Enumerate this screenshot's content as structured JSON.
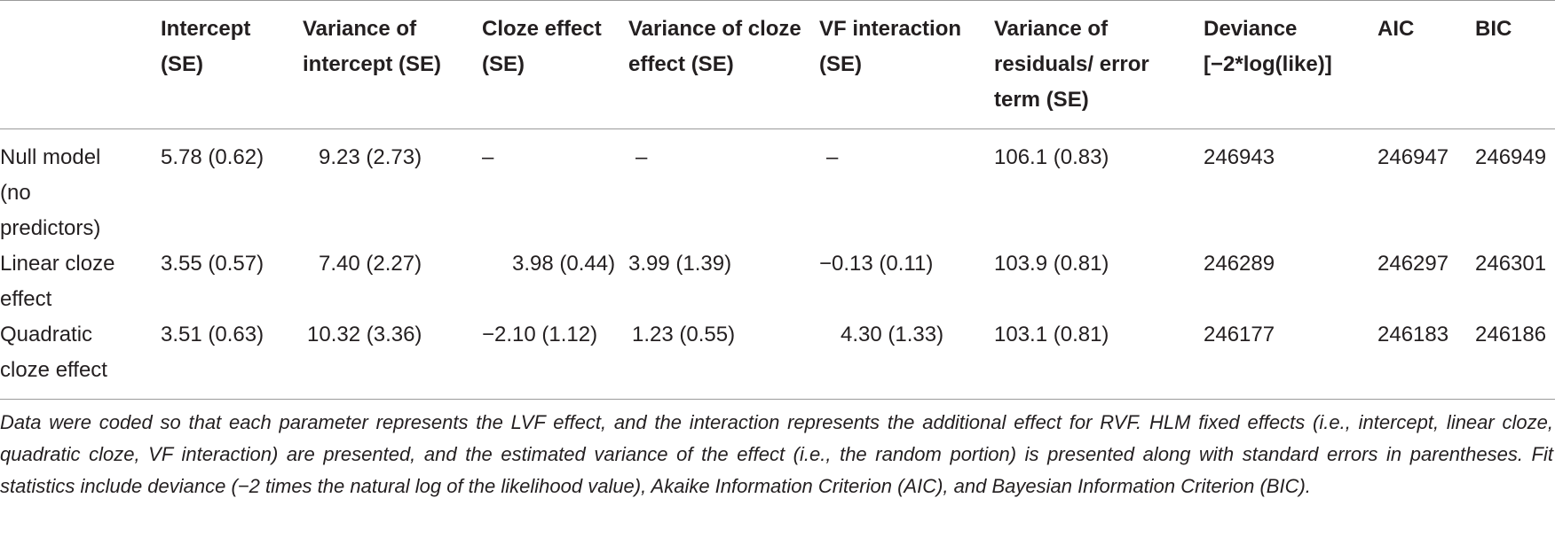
{
  "table": {
    "headers": [
      "",
      "Intercept (SE)",
      "Variance of intercept (SE)",
      "Cloze effect (SE)",
      "Variance of cloze effect (SE)",
      "VF interaction (SE)",
      "Variance of residuals/ error term (SE)",
      "Deviance [−2*log(like)]",
      "AIC",
      "BIC"
    ],
    "rows": [
      {
        "label": "Null model (no predictors)",
        "cells": [
          "5.78 (0.62)",
          "9.23 (2.73)",
          "–",
          "–",
          "–",
          "106.1 (0.83)",
          "246943",
          "246947",
          "246949"
        ]
      },
      {
        "label": "Linear cloze effect",
        "cells": [
          "3.55 (0.57)",
          "7.40 (2.27)",
          "3.98 (0.44)",
          "3.99 (1.39)",
          "−0.13 (0.11)",
          "103.9 (0.81)",
          "246289",
          "246297",
          "246301"
        ]
      },
      {
        "label": "Quadratic cloze effect",
        "cells": [
          "3.51 (0.63)",
          "10.32 (3.36)",
          "−2.10 (1.12)",
          "1.23 (0.55)",
          "4.30 (1.33)",
          "103.1 (0.81)",
          "246177",
          "246183",
          "246186"
        ]
      }
    ]
  },
  "note": "Data were coded so that each parameter represents the LVF effect, and the interaction represents the additional effect for RVF. HLM fixed effects (i.e., intercept, linear cloze, quadratic cloze, VF interaction) are presented, and the estimated variance of the effect (i.e., the random portion) is presented along with standard errors in parentheses. Fit statistics include deviance (−2 times the natural log of the likelihood value), Akaike Information Criterion (AIC), and Bayesian Information Criterion (BIC)."
}
